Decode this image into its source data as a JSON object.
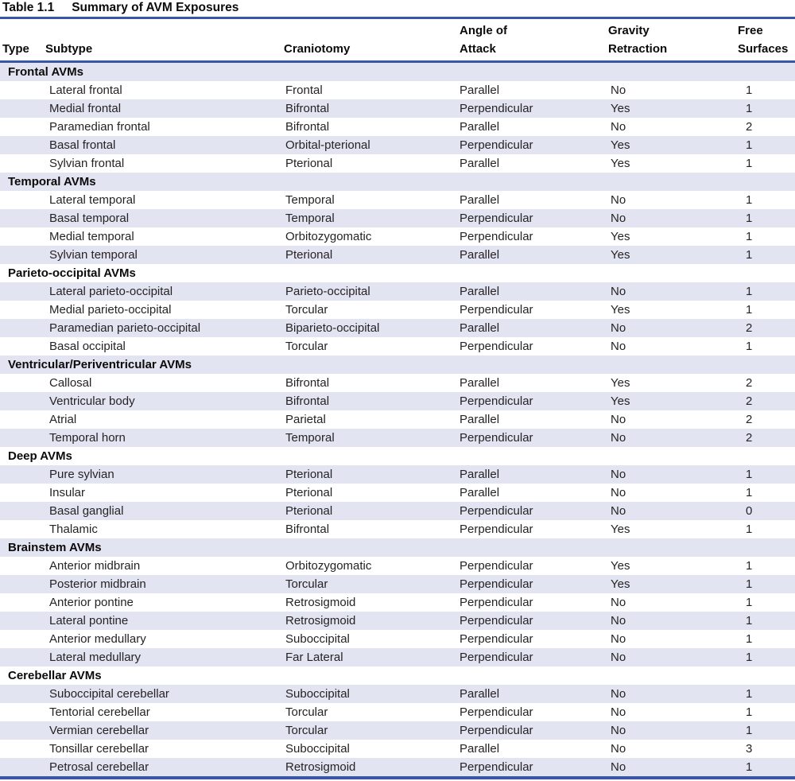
{
  "title": {
    "label": "Table 1.1",
    "text": "Summary of AVM Exposures"
  },
  "header": {
    "type": "Type",
    "subtype": "Subtype",
    "craniotomy": "Craniotomy",
    "angle_line1": "Angle of",
    "angle_line2": "Attack",
    "gravity_line1": "Gravity",
    "gravity_line2": "Retraction",
    "free_line1": "Free",
    "free_line2": "Surfaces"
  },
  "sections": [
    {
      "type": "Frontal AVMs",
      "rows": [
        {
          "subtype": "Lateral frontal",
          "craniotomy": "Frontal",
          "angle": "Parallel",
          "gravity": "No",
          "surfaces": "1"
        },
        {
          "subtype": "Medial frontal",
          "craniotomy": "Bifrontal",
          "angle": "Perpendicular",
          "gravity": "Yes",
          "surfaces": "1"
        },
        {
          "subtype": "Paramedian frontal",
          "craniotomy": "Bifrontal",
          "angle": "Parallel",
          "gravity": "No",
          "surfaces": "2"
        },
        {
          "subtype": "Basal frontal",
          "craniotomy": "Orbital-pterional",
          "angle": "Perpendicular",
          "gravity": "Yes",
          "surfaces": "1"
        },
        {
          "subtype": "Sylvian frontal",
          "craniotomy": "Pterional",
          "angle": "Parallel",
          "gravity": "Yes",
          "surfaces": "1"
        }
      ]
    },
    {
      "type": "Temporal AVMs",
      "rows": [
        {
          "subtype": "Lateral temporal",
          "craniotomy": "Temporal",
          "angle": "Parallel",
          "gravity": "No",
          "surfaces": "1"
        },
        {
          "subtype": "Basal temporal",
          "craniotomy": "Temporal",
          "angle": "Perpendicular",
          "gravity": "No",
          "surfaces": "1"
        },
        {
          "subtype": "Medial temporal",
          "craniotomy": "Orbitozygomatic",
          "angle": "Perpendicular",
          "gravity": "Yes",
          "surfaces": "1"
        },
        {
          "subtype": "Sylvian temporal",
          "craniotomy": "Pterional",
          "angle": "Parallel",
          "gravity": "Yes",
          "surfaces": "1"
        }
      ]
    },
    {
      "type": "Parieto-occipital AVMs",
      "rows": [
        {
          "subtype": "Lateral parieto-occipital",
          "craniotomy": "Parieto-occipital",
          "angle": "Parallel",
          "gravity": "No",
          "surfaces": "1"
        },
        {
          "subtype": "Medial parieto-occipital",
          "craniotomy": "Torcular",
          "angle": "Perpendicular",
          "gravity": "Yes",
          "surfaces": "1"
        },
        {
          "subtype": "Paramedian parieto-occipital",
          "craniotomy": "Biparieto-occipital",
          "angle": "Parallel",
          "gravity": "No",
          "surfaces": "2"
        },
        {
          "subtype": "Basal occipital",
          "craniotomy": "Torcular",
          "angle": "Perpendicular",
          "gravity": "No",
          "surfaces": "1"
        }
      ]
    },
    {
      "type": "Ventricular/Periventricular AVMs",
      "rows": [
        {
          "subtype": "Callosal",
          "craniotomy": "Bifrontal",
          "angle": "Parallel",
          "gravity": "Yes",
          "surfaces": "2"
        },
        {
          "subtype": "Ventricular body",
          "craniotomy": "Bifrontal",
          "angle": "Perpendicular",
          "gravity": "Yes",
          "surfaces": "2"
        },
        {
          "subtype": "Atrial",
          "craniotomy": "Parietal",
          "angle": "Parallel",
          "gravity": "No",
          "surfaces": "2"
        },
        {
          "subtype": "Temporal horn",
          "craniotomy": "Temporal",
          "angle": "Perpendicular",
          "gravity": "No",
          "surfaces": "2"
        }
      ]
    },
    {
      "type": "Deep AVMs",
      "rows": [
        {
          "subtype": "Pure sylvian",
          "craniotomy": "Pterional",
          "angle": "Parallel",
          "gravity": "No",
          "surfaces": "1"
        },
        {
          "subtype": "Insular",
          "craniotomy": "Pterional",
          "angle": "Parallel",
          "gravity": "No",
          "surfaces": "1"
        },
        {
          "subtype": "Basal ganglial",
          "craniotomy": "Pterional",
          "angle": "Perpendicular",
          "gravity": "No",
          "surfaces": "0"
        },
        {
          "subtype": "Thalamic",
          "craniotomy": "Bifrontal",
          "angle": "Perpendicular",
          "gravity": "Yes",
          "surfaces": "1"
        }
      ]
    },
    {
      "type": "Brainstem AVMs",
      "rows": [
        {
          "subtype": "Anterior midbrain",
          "craniotomy": "Orbitozygomatic",
          "angle": "Perpendicular",
          "gravity": "Yes",
          "surfaces": "1"
        },
        {
          "subtype": "Posterior midbrain",
          "craniotomy": "Torcular",
          "angle": "Perpendicular",
          "gravity": "Yes",
          "surfaces": "1"
        },
        {
          "subtype": "Anterior pontine",
          "craniotomy": "Retrosigmoid",
          "angle": "Perpendicular",
          "gravity": "No",
          "surfaces": "1"
        },
        {
          "subtype": "Lateral pontine",
          "craniotomy": "Retrosigmoid",
          "angle": "Perpendicular",
          "gravity": "No",
          "surfaces": "1"
        },
        {
          "subtype": "Anterior medullary",
          "craniotomy": "Suboccipital",
          "angle": "Perpendicular",
          "gravity": "No",
          "surfaces": "1"
        },
        {
          "subtype": "Lateral medullary",
          "craniotomy": "Far Lateral",
          "angle": "Perpendicular",
          "gravity": "No",
          "surfaces": "1"
        }
      ]
    },
    {
      "type": "Cerebellar AVMs",
      "rows": [
        {
          "subtype": "Suboccipital cerebellar",
          "craniotomy": "Suboccipital",
          "angle": "Parallel",
          "gravity": "No",
          "surfaces": "1"
        },
        {
          "subtype": "Tentorial cerebellar",
          "craniotomy": "Torcular",
          "angle": "Perpendicular",
          "gravity": "No",
          "surfaces": "1"
        },
        {
          "subtype": "Vermian cerebellar",
          "craniotomy": "Torcular",
          "angle": "Perpendicular",
          "gravity": "No",
          "surfaces": "1"
        },
        {
          "subtype": "Tonsillar cerebellar",
          "craniotomy": "Suboccipital",
          "angle": "Parallel",
          "gravity": "No",
          "surfaces": "3"
        },
        {
          "subtype": "Petrosal cerebellar",
          "craniotomy": "Retrosigmoid",
          "angle": "Perpendicular",
          "gravity": "No",
          "surfaces": "1"
        }
      ]
    }
  ],
  "colors": {
    "rule_blue": "#3a57a5",
    "stripe": "#e3e4f1",
    "text": "#262324"
  }
}
